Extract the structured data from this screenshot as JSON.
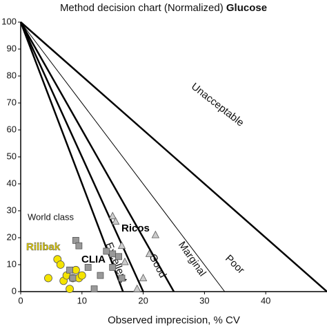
{
  "chart_data": {
    "type": "scatter",
    "title": "Method decision chart (Normalized)",
    "title_bold": "Glucose",
    "x_label": "Observed imprecision, % CV",
    "xlim": [
      0,
      50
    ],
    "ylim": [
      0,
      100
    ],
    "xticks": [
      0,
      10,
      20,
      30,
      40
    ],
    "yticks": [
      0,
      10,
      20,
      30,
      40,
      50,
      60,
      70,
      80,
      90,
      100
    ],
    "lines": [
      {
        "label": "World class",
        "x_intercept": 16.7
      },
      {
        "label": "Excellent",
        "x_intercept": 20
      },
      {
        "label": "Good",
        "x_intercept": 25
      },
      {
        "label": "Marginal",
        "x_intercept": 33.3
      },
      {
        "label": "Poor",
        "x_intercept": 50
      },
      {
        "label": "Unacceptable",
        "x_intercept": 50
      }
    ],
    "series": [
      {
        "name": "Rilibak",
        "color": "#f5e400",
        "marker": "circle",
        "x": [
          4.5,
          6,
          6.5,
          7,
          7.5,
          8,
          8.5,
          9,
          9.5,
          10
        ],
        "values": [
          5,
          12,
          10,
          4,
          6,
          1,
          5,
          8,
          5,
          6
        ]
      },
      {
        "name": "CLIA",
        "color": "#999999",
        "marker": "square",
        "x": [
          9,
          9.5,
          8,
          8.5,
          11,
          12,
          13,
          14,
          15,
          15,
          16,
          16.5
        ],
        "values": [
          19,
          17,
          8,
          5,
          9,
          1,
          6,
          15,
          14,
          9,
          13,
          5
        ]
      },
      {
        "name": "Ricos",
        "color": "#aaaaaa",
        "marker": "triangle",
        "x": [
          15,
          15.5,
          16.5,
          17,
          19,
          21,
          22,
          20
        ],
        "values": [
          28,
          26,
          17,
          11,
          1,
          14,
          21,
          5
        ]
      }
    ]
  }
}
